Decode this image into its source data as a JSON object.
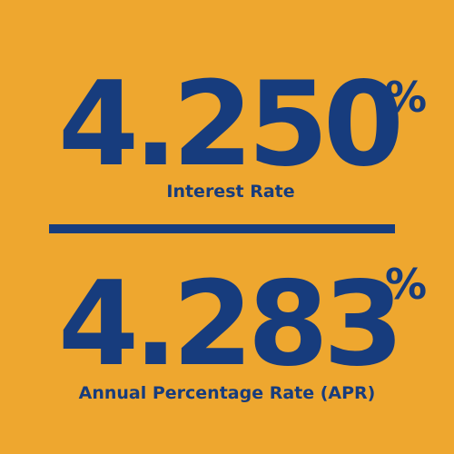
{
  "interest_rate": {
    "value": "4.250",
    "percent_symbol": "%",
    "label": "Interest Rate"
  },
  "apr": {
    "value": "4.283",
    "percent_symbol": "%",
    "label": "Annual Percentage Rate (APR)"
  },
  "colors": {
    "background": "#EEA72F",
    "text": "#173C7D",
    "divider": "#173C7D"
  }
}
